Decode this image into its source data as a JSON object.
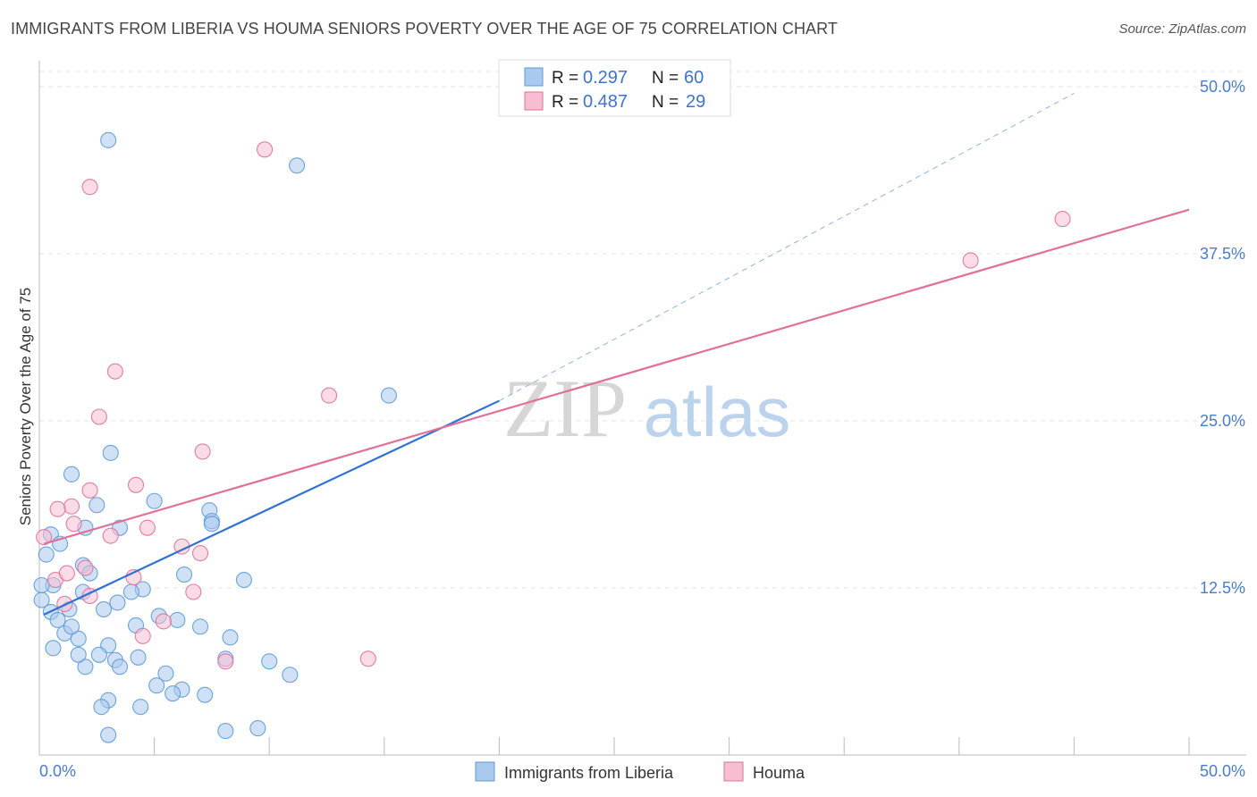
{
  "title": "IMMIGRANTS FROM LIBERIA VS HOUMA SENIORS POVERTY OVER THE AGE OF 75 CORRELATION CHART",
  "source": "Source: ZipAtlas.com",
  "watermark": {
    "zip": "ZIP",
    "atlas": "atlas"
  },
  "chart_data": {
    "type": "scatter",
    "ylabel": "Seniors Poverty Over the Age of 75",
    "xlabel": "",
    "xlim": [
      0,
      50
    ],
    "ylim": [
      0,
      50
    ],
    "x_tick_labels": [
      "0.0%",
      "50.0%"
    ],
    "y_ticks": [
      {
        "value": 12.5,
        "label": "12.5%"
      },
      {
        "value": 25.0,
        "label": "25.0%"
      },
      {
        "value": 37.5,
        "label": "37.5%"
      },
      {
        "value": 50.0,
        "label": "50.0%"
      }
    ],
    "grid": "horizontal dashed",
    "legend_position": "top-center",
    "series": [
      {
        "name": "Immigrants from Liberia",
        "color": "#5b9bd5",
        "fill": "#aac9ee",
        "R": "0.297",
        "N": "60",
        "trend": {
          "x": [
            0.2,
            20.0
          ],
          "y": [
            10.5,
            26.5
          ]
        },
        "trend_extension": {
          "x": [
            20.0,
            45.0
          ],
          "y": [
            26.5,
            49.5
          ]
        },
        "points": [
          [
            3.0,
            46.0
          ],
          [
            11.2,
            44.1
          ],
          [
            15.2,
            26.9
          ],
          [
            3.1,
            22.6
          ],
          [
            1.4,
            21.0
          ],
          [
            5.0,
            19.0
          ],
          [
            2.5,
            18.7
          ],
          [
            7.4,
            18.3
          ],
          [
            7.5,
            17.5
          ],
          [
            0.5,
            16.5
          ],
          [
            2.0,
            17.0
          ],
          [
            3.5,
            17.0
          ],
          [
            7.5,
            17.3
          ],
          [
            0.9,
            15.8
          ],
          [
            1.9,
            14.2
          ],
          [
            2.2,
            13.6
          ],
          [
            6.3,
            13.5
          ],
          [
            8.9,
            13.1
          ],
          [
            4.5,
            12.4
          ],
          [
            0.1,
            11.6
          ],
          [
            0.6,
            12.7
          ],
          [
            1.9,
            12.2
          ],
          [
            4.0,
            12.2
          ],
          [
            2.8,
            10.9
          ],
          [
            3.4,
            11.4
          ],
          [
            1.3,
            10.9
          ],
          [
            0.5,
            10.7
          ],
          [
            0.8,
            10.1
          ],
          [
            5.2,
            10.4
          ],
          [
            6.0,
            10.1
          ],
          [
            7.0,
            9.6
          ],
          [
            4.2,
            9.7
          ],
          [
            1.1,
            9.1
          ],
          [
            1.7,
            8.7
          ],
          [
            0.6,
            8.0
          ],
          [
            3.0,
            8.2
          ],
          [
            8.3,
            8.8
          ],
          [
            2.6,
            7.5
          ],
          [
            3.3,
            7.1
          ],
          [
            4.3,
            7.3
          ],
          [
            8.1,
            7.2
          ],
          [
            5.5,
            6.1
          ],
          [
            10.0,
            7.0
          ],
          [
            10.9,
            6.0
          ],
          [
            3.5,
            6.6
          ],
          [
            2.0,
            6.6
          ],
          [
            5.1,
            5.2
          ],
          [
            6.2,
            4.9
          ],
          [
            5.8,
            4.6
          ],
          [
            7.2,
            4.5
          ],
          [
            3.0,
            4.1
          ],
          [
            2.7,
            3.6
          ],
          [
            4.4,
            3.6
          ],
          [
            8.1,
            1.8
          ],
          [
            3.0,
            1.5
          ],
          [
            0.1,
            12.7
          ],
          [
            1.4,
            9.6
          ],
          [
            0.3,
            15.0
          ],
          [
            1.7,
            7.5
          ],
          [
            9.5,
            2.0
          ]
        ]
      },
      {
        "name": "Houma",
        "color": "#e0709a",
        "fill": "#f7bdd0",
        "R": "0.487",
        "N": "29",
        "trend": {
          "x": [
            0.2,
            50.0
          ],
          "y": [
            15.8,
            40.8
          ]
        },
        "points": [
          [
            9.8,
            45.3
          ],
          [
            2.2,
            42.5
          ],
          [
            44.5,
            40.1
          ],
          [
            40.5,
            37.0
          ],
          [
            3.3,
            28.7
          ],
          [
            12.6,
            26.9
          ],
          [
            2.6,
            25.3
          ],
          [
            7.1,
            22.7
          ],
          [
            4.2,
            20.2
          ],
          [
            2.2,
            19.8
          ],
          [
            1.4,
            18.6
          ],
          [
            0.8,
            18.4
          ],
          [
            1.5,
            17.3
          ],
          [
            4.7,
            17.0
          ],
          [
            3.1,
            16.4
          ],
          [
            0.2,
            16.3
          ],
          [
            6.2,
            15.6
          ],
          [
            7.0,
            15.1
          ],
          [
            0.7,
            13.1
          ],
          [
            1.2,
            13.6
          ],
          [
            2.0,
            14.0
          ],
          [
            2.2,
            11.9
          ],
          [
            1.1,
            11.3
          ],
          [
            4.1,
            13.3
          ],
          [
            6.7,
            12.2
          ],
          [
            4.5,
            8.9
          ],
          [
            8.1,
            7.0
          ],
          [
            5.4,
            10.0
          ],
          [
            14.3,
            7.2
          ]
        ]
      }
    ]
  }
}
